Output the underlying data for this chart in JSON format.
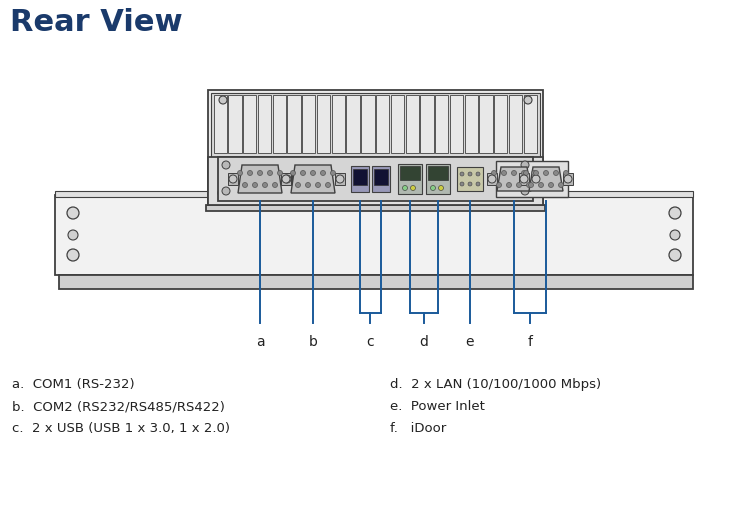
{
  "title": "Rear View",
  "title_color": "#1a3a6b",
  "title_fontsize": 22,
  "bg_color": "#ffffff",
  "line_color": "#1a5a9a",
  "draw_color": "#404040",
  "labels_left": [
    "a.  COM1 (RS-232)",
    "b.  COM2 (RS232/RS485/RS422)",
    "c.  2 x USB (USB 1 x 3.0, 1 x 2.0)"
  ],
  "labels_right": [
    "d.  2 x LAN (10/100/1000 Mbps)",
    "e.  Power Inlet",
    "f.   iDoor"
  ]
}
